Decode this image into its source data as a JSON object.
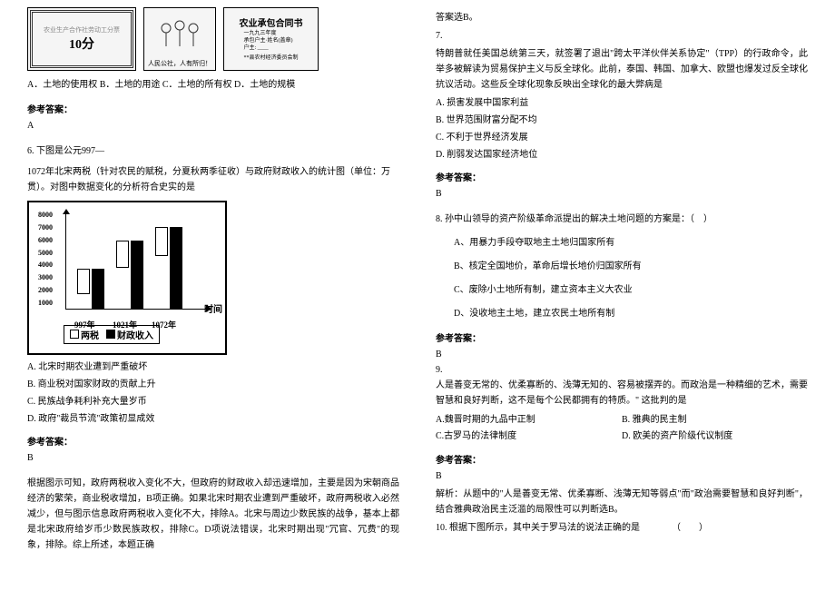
{
  "left": {
    "img3_title": "农业承包合同书",
    "img3_line1": "一九九三年度",
    "img3_line2": "承包户主·姓名(盖章)",
    "img3_line3": "户主: ____",
    "img3_line4": "**县农村经济委员会制",
    "img2_caption": "人民公社，人有所归！",
    "img1_top": "农业生产合作社劳动工分票",
    "img1_score": "10分",
    "q5_options": "A．土地的使用权    B．土地的用途    C．土地的所有权    D．土地的规模",
    "ref_label": "参考答案：",
    "q5_answer": "A",
    "q6_intro1": "6. 下图是公元997—",
    "q6_intro2": "1072年北宋两税（针对农民的赋税，分夏秋两季征收）与政府财政收入的统计图（单位：万贯）。对图中数据变化的分析符合史实的是",
    "chart": {
      "y_ticks": [
        "8000",
        "7000",
        "6000",
        "5000",
        "4000",
        "3000",
        "2000",
        "1000"
      ],
      "x_labels": [
        "997年",
        "1021年",
        "1072年"
      ],
      "time_label": "时间",
      "legend1": "两税",
      "legend2": "财政收入",
      "groups": [
        {
          "x": 12,
          "bar1_h": 28,
          "bar2_h": 44
        },
        {
          "x": 55,
          "bar1_h": 30,
          "bar2_h": 75
        },
        {
          "x": 98,
          "bar1_h": 32,
          "bar2_h": 90
        }
      ]
    },
    "q6_a": "A. 北宋时期农业遭到严重破坏",
    "q6_b": "B. 商业税对国家财政的贡献上升",
    "q6_c": "C. 民族战争耗利补充大量岁币",
    "q6_d": "D. 政府\"裁员节流\"政策初显成效",
    "q6_answer": "B",
    "q6_explain": "根据图示可知，政府两税收入变化不大，但政府的财政收入却迅速增加，主要是因为宋朝商品经济的繁荣，商业税收增加，B项正确。如果北宋时期农业遭到严重破坏，政府两税收入必然减少，但与图示信息政府两税收入变化不大，排除A。北宋与周边少数民族的战争，基本上都是北宋政府给岁币少数民族政权，排除C。D项说法错误，北宋时期出现\"冗官、冗费\"的现象，排除。综上所述，本题正确"
  },
  "right": {
    "top_line": "答案选B。",
    "q7_num": "7.",
    "q7_text": "特朗普就任美国总统第三天，就签署了退出\"跨太平洋伙伴关系协定\"（TPP）的行政命令，此举多被解读为贸易保护主义与反全球化。此前，泰国、韩国、加拿大、欧盟也爆发过反全球化抗议活动。这些反全球化现象反映出全球化的最大弊病是",
    "q7_a": "A. 损害发展中国家利益",
    "q7_b": "B. 世界范围财富分配不均",
    "q7_c": "C. 不利于世界经济发展",
    "q7_d": "D. 削弱发达国家经济地位",
    "ref_label": "参考答案：",
    "q7_answer": "B",
    "q8_text": "8. 孙中山领导的资产阶级革命派提出的解决土地问题的方案是：（　）",
    "q8_a": "A、用暴力手段夺取地主土地归国家所有",
    "q8_b": "B、核定全国地价，革命后增长地价归国家所有",
    "q8_c": "C、废除小土地所有制，建立资本主义大农业",
    "q8_d": "D、没收地主土地，建立农民土地所有制",
    "q8_answer": "B",
    "q9_num": "9.",
    "q9_text": "人是善变无常的、优柔寡断的、浅薄无知的、容易被摆弄的。而政治是一种精细的艺术，需要智慧和良好判断，这不是每个公民都拥有的特质。\" 这批判的是",
    "q9_a": "A.魏晋时期的九品中正制",
    "q9_b": "B. 雅典的民主制",
    "q9_c": "C.古罗马的法律制度",
    "q9_d": "D. 欧美的资产阶级代议制度",
    "q9_answer": "B",
    "q9_explain": "解析：从题中的\"人是善变无常、优柔寡断、浅薄无知等弱点\"而\"政治需要智慧和良好判断\"，结合雅典政治民主泛滥的局限性可以判断选B。",
    "q10_text": "10. 根据下图所示，其中关于罗马法的说法正确的是　　　　（　　）"
  }
}
